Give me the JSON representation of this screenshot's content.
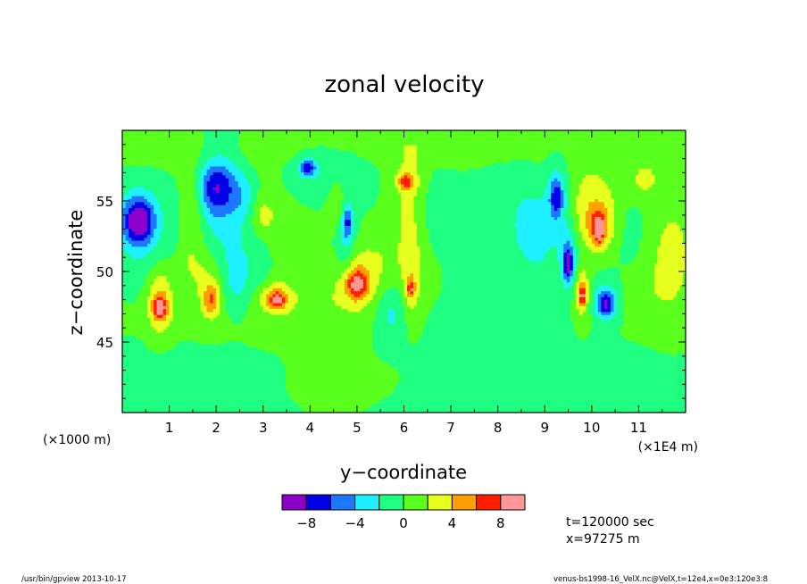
{
  "chart_data": {
    "type": "heatmap",
    "title": "zonal velocity",
    "xlabel": "y−coordinate",
    "ylabel": "z−coordinate",
    "x_unit": "(×1E4 m)",
    "y_unit": "(×1000 m)",
    "xlim": [
      0,
      12
    ],
    "ylim": [
      40,
      60
    ],
    "x_ticks": [
      1,
      2,
      3,
      4,
      5,
      6,
      7,
      8,
      9,
      10,
      11
    ],
    "y_ticks": [
      45,
      50,
      55
    ],
    "colorbar": {
      "levels": [
        -10,
        -8,
        -6,
        -4,
        -2,
        0,
        2,
        4,
        6,
        8,
        10
      ],
      "labels": [
        "−8",
        "−4",
        "0",
        "4",
        "8"
      ],
      "label_values": [
        -8,
        -4,
        0,
        4,
        8
      ],
      "colors": [
        "#8c00c8",
        "#0000e6",
        "#1e78ff",
        "#1ef0ff",
        "#1eff82",
        "#5aff1e",
        "#e6ff1e",
        "#ffa000",
        "#ff1e00",
        "#ff9696"
      ]
    },
    "background_color": "#5aff1e",
    "features": [
      {
        "x": 1.6,
        "y": 58.5,
        "sx": 2.0,
        "sy": 1.2,
        "v": 0.5
      },
      {
        "x": 3.5,
        "y": 58.5,
        "sx": 1.4,
        "sy": 1.0,
        "v": 0.4
      },
      {
        "x": 6.5,
        "y": 58.8,
        "sx": 2.5,
        "sy": 1.0,
        "v": 0.5
      },
      {
        "x": 10.0,
        "y": 58.5,
        "sx": 2.5,
        "sy": 1.2,
        "v": 0.5
      },
      {
        "x": 0.3,
        "y": 57.0,
        "sx": 0.6,
        "sy": 2.0,
        "v": 0.6
      },
      {
        "x": 0.35,
        "y": 53.6,
        "sx": 0.22,
        "sy": 1.1,
        "v": -9.0
      },
      {
        "x": 0.35,
        "y": 53.2,
        "sx": 0.5,
        "sy": 3.0,
        "v": -2.6
      },
      {
        "x": 0.1,
        "y": 49.5,
        "sx": 0.35,
        "sy": 2.5,
        "v": 0.5
      },
      {
        "x": 0.8,
        "y": 48.0,
        "sx": 0.2,
        "sy": 1.8,
        "v": 4.5
      },
      {
        "x": 0.8,
        "y": 47.5,
        "sx": 0.1,
        "sy": 0.5,
        "v": 7.0
      },
      {
        "x": 1.5,
        "y": 54.5,
        "sx": 0.18,
        "sy": 2.4,
        "v": 2.8
      },
      {
        "x": 1.35,
        "y": 50.5,
        "sx": 0.18,
        "sy": 1.2,
        "v": 1.2
      },
      {
        "x": 2.0,
        "y": 56.0,
        "sx": 0.3,
        "sy": 1.3,
        "v": -6.0
      },
      {
        "x": 2.1,
        "y": 54.5,
        "sx": 0.35,
        "sy": 3.5,
        "v": -2.6
      },
      {
        "x": 1.8,
        "y": 49.5,
        "sx": 0.25,
        "sy": 1.6,
        "v": 2.6
      },
      {
        "x": 1.9,
        "y": 48.0,
        "sx": 0.12,
        "sy": 0.8,
        "v": 5.0
      },
      {
        "x": 2.45,
        "y": 49.5,
        "sx": 0.2,
        "sy": 2.0,
        "v": -2.4
      },
      {
        "x": 2.6,
        "y": 55.2,
        "sx": 0.18,
        "sy": 1.3,
        "v": -2.2
      },
      {
        "x": 3.0,
        "y": 54.0,
        "sx": 0.2,
        "sy": 1.0,
        "v": 2.3
      },
      {
        "x": 2.9,
        "y": 50.5,
        "sx": 0.2,
        "sy": 1.5,
        "v": -1.6
      },
      {
        "x": 3.25,
        "y": 48.2,
        "sx": 0.3,
        "sy": 0.8,
        "v": 3.5
      },
      {
        "x": 3.3,
        "y": 48.0,
        "sx": 0.12,
        "sy": 0.45,
        "v": 5.5
      },
      {
        "x": 3.3,
        "y": 52.0,
        "sx": 0.5,
        "sy": 2.5,
        "v": 0.7
      },
      {
        "x": 3.4,
        "y": 57.0,
        "sx": 0.6,
        "sy": 1.3,
        "v": 1.4
      },
      {
        "x": 4.0,
        "y": 57.2,
        "sx": 0.75,
        "sy": 1.3,
        "v": -2.6
      },
      {
        "x": 3.95,
        "y": 57.4,
        "sx": 0.12,
        "sy": 0.4,
        "v": -6.5
      },
      {
        "x": 4.3,
        "y": 47.0,
        "sx": 0.5,
        "sy": 2.0,
        "v": 1.4
      },
      {
        "x": 4.6,
        "y": 55.0,
        "sx": 0.15,
        "sy": 1.5,
        "v": 2.5
      },
      {
        "x": 4.75,
        "y": 52.5,
        "sx": 0.15,
        "sy": 2.3,
        "v": -2.8
      },
      {
        "x": 4.8,
        "y": 53.5,
        "sx": 0.07,
        "sy": 0.8,
        "v": -5.0
      },
      {
        "x": 5.0,
        "y": 49.3,
        "sx": 0.35,
        "sy": 1.5,
        "v": 3.4
      },
      {
        "x": 5.0,
        "y": 49.1,
        "sx": 0.16,
        "sy": 0.7,
        "v": 6.2
      },
      {
        "x": 5.45,
        "y": 51.0,
        "sx": 0.4,
        "sy": 1.3,
        "v": 1.3
      },
      {
        "x": 5.75,
        "y": 47.0,
        "sx": 0.22,
        "sy": 1.4,
        "v": -2.4
      },
      {
        "x": 6.15,
        "y": 55.0,
        "sx": 0.3,
        "sy": 3.5,
        "v": 2.6
      },
      {
        "x": 6.05,
        "y": 56.4,
        "sx": 0.12,
        "sy": 0.4,
        "v": 5.8
      },
      {
        "x": 6.15,
        "y": 49.0,
        "sx": 0.15,
        "sy": 2.0,
        "v": 3.0
      },
      {
        "x": 6.15,
        "y": 48.8,
        "sx": 0.05,
        "sy": 0.4,
        "v": 5.0
      },
      {
        "x": 6.6,
        "y": 54.5,
        "sx": 0.25,
        "sy": 2.0,
        "v": -1.4
      },
      {
        "x": 6.8,
        "y": 50.0,
        "sx": 0.5,
        "sy": 3.0,
        "v": 1.2
      },
      {
        "x": 7.0,
        "y": 52.0,
        "sx": 0.6,
        "sy": 3.0,
        "v": -1.0
      },
      {
        "x": 7.7,
        "y": 46.0,
        "sx": 0.9,
        "sy": 3.5,
        "v": -1.4
      },
      {
        "x": 7.5,
        "y": 42.0,
        "sx": 1.0,
        "sy": 1.5,
        "v": -0.8
      },
      {
        "x": 8.3,
        "y": 54.5,
        "sx": 0.5,
        "sy": 2.5,
        "v": -1.2
      },
      {
        "x": 8.8,
        "y": 52.5,
        "sx": 0.3,
        "sy": 2.5,
        "v": -2.3
      },
      {
        "x": 9.3,
        "y": 55.0,
        "sx": 0.2,
        "sy": 2.3,
        "v": -2.8
      },
      {
        "x": 9.25,
        "y": 55.3,
        "sx": 0.1,
        "sy": 1.0,
        "v": -5.5
      },
      {
        "x": 9.5,
        "y": 51.0,
        "sx": 0.12,
        "sy": 1.5,
        "v": -4.0
      },
      {
        "x": 9.5,
        "y": 50.5,
        "sx": 0.07,
        "sy": 0.8,
        "v": -6.0
      },
      {
        "x": 9.8,
        "y": 48.5,
        "sx": 0.12,
        "sy": 1.3,
        "v": 4.0
      },
      {
        "x": 9.8,
        "y": 48.3,
        "sx": 0.05,
        "sy": 0.5,
        "v": 5.8
      },
      {
        "x": 10.0,
        "y": 55.0,
        "sx": 0.5,
        "sy": 2.0,
        "v": 2.8
      },
      {
        "x": 10.15,
        "y": 53.2,
        "sx": 0.22,
        "sy": 1.2,
        "v": 4.5
      },
      {
        "x": 10.15,
        "y": 53.0,
        "sx": 0.07,
        "sy": 0.6,
        "v": 7.5
      },
      {
        "x": 10.3,
        "y": 48.0,
        "sx": 0.22,
        "sy": 1.0,
        "v": -3.5
      },
      {
        "x": 10.3,
        "y": 47.7,
        "sx": 0.13,
        "sy": 0.6,
        "v": -5.5
      },
      {
        "x": 10.8,
        "y": 54.0,
        "sx": 0.3,
        "sy": 3.0,
        "v": -1.0
      },
      {
        "x": 11.1,
        "y": 56.5,
        "sx": 0.25,
        "sy": 1.0,
        "v": 2.5
      },
      {
        "x": 11.7,
        "y": 51.0,
        "sx": 0.35,
        "sy": 3.0,
        "v": 2.8
      },
      {
        "x": 11.0,
        "y": 48.5,
        "sx": 0.4,
        "sy": 1.5,
        "v": 1.2
      },
      {
        "x": 8.5,
        "y": 48.5,
        "sx": 0.5,
        "sy": 1.5,
        "v": 1.0
      },
      {
        "x": 2.5,
        "y": 46.5,
        "sx": 1.2,
        "sy": 1.2,
        "v": 0.8
      },
      {
        "x": 1.0,
        "y": 43.0,
        "sx": 1.5,
        "sy": 1.5,
        "v": -0.7
      },
      {
        "x": 11.0,
        "y": 42.0,
        "sx": 1.5,
        "sy": 1.5,
        "v": -0.6
      },
      {
        "x": 5.0,
        "y": 42.5,
        "sx": 1.0,
        "sy": 1.0,
        "v": 0.5
      }
    ]
  },
  "info": {
    "time": "t=120000 sec",
    "position": "x=97275 m"
  },
  "footer": {
    "left": "/usr/bin/gpview   2013-10-17",
    "right": "venus-bs1998-16_VelX.nc@VelX,t=12e4,x=0e3:120e3:8"
  }
}
